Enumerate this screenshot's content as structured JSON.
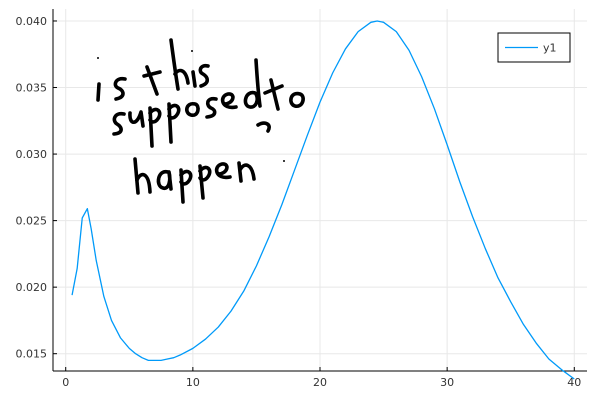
{
  "chart_data": {
    "type": "line",
    "title": "",
    "xlabel": "",
    "ylabel": "",
    "xlim": [
      -1,
      41
    ],
    "ylim": [
      0.0137,
      0.0409
    ],
    "grid": true,
    "legend_position": "top-right",
    "x_ticks": [
      0,
      10,
      20,
      30,
      40
    ],
    "x_tick_labels": [
      "0",
      "10",
      "20",
      "30",
      "40"
    ],
    "y_ticks": [
      0.015,
      0.02,
      0.025,
      0.03,
      0.035,
      0.04
    ],
    "y_tick_labels": [
      "0.015",
      "0.020",
      "0.025",
      "0.030",
      "0.035",
      "0.040"
    ],
    "series": [
      {
        "name": "y1",
        "color": "#009af9",
        "x": [
          0.5,
          0.9,
          1.3,
          1.7,
          2.0,
          2.4,
          3.0,
          3.6,
          4.3,
          5.0,
          5.5,
          6.0,
          6.5,
          7.0,
          7.5,
          8.0,
          8.5,
          9.0,
          10,
          11,
          12,
          13,
          14,
          15,
          16,
          17,
          18,
          19,
          20,
          21,
          22,
          23,
          24,
          24.5,
          25,
          26,
          27,
          28,
          29,
          30,
          31,
          32,
          33,
          34,
          35,
          36,
          37,
          38,
          39,
          40
        ],
        "y": [
          0.0194,
          0.0214,
          0.0252,
          0.0259,
          0.0244,
          0.022,
          0.0193,
          0.0175,
          0.0162,
          0.0154,
          0.015,
          0.0147,
          0.0145,
          0.0145,
          0.0145,
          0.0146,
          0.0147,
          0.0149,
          0.0154,
          0.0161,
          0.017,
          0.0182,
          0.0197,
          0.0216,
          0.0238,
          0.0262,
          0.0288,
          0.0314,
          0.0339,
          0.0361,
          0.0379,
          0.0392,
          0.0399,
          0.04,
          0.0399,
          0.0392,
          0.0378,
          0.0358,
          0.0334,
          0.0307,
          0.0279,
          0.0253,
          0.0229,
          0.0207,
          0.0189,
          0.0172,
          0.0158,
          0.0146,
          0.0138,
          0.0131
        ]
      }
    ],
    "annotations": [
      {
        "text": "is this supposed to happen?",
        "style": "handwritten"
      }
    ]
  },
  "colors": {
    "axis": "#000000",
    "grid": "#e8e8e8",
    "ink": "#000000",
    "series": "#009af9"
  }
}
